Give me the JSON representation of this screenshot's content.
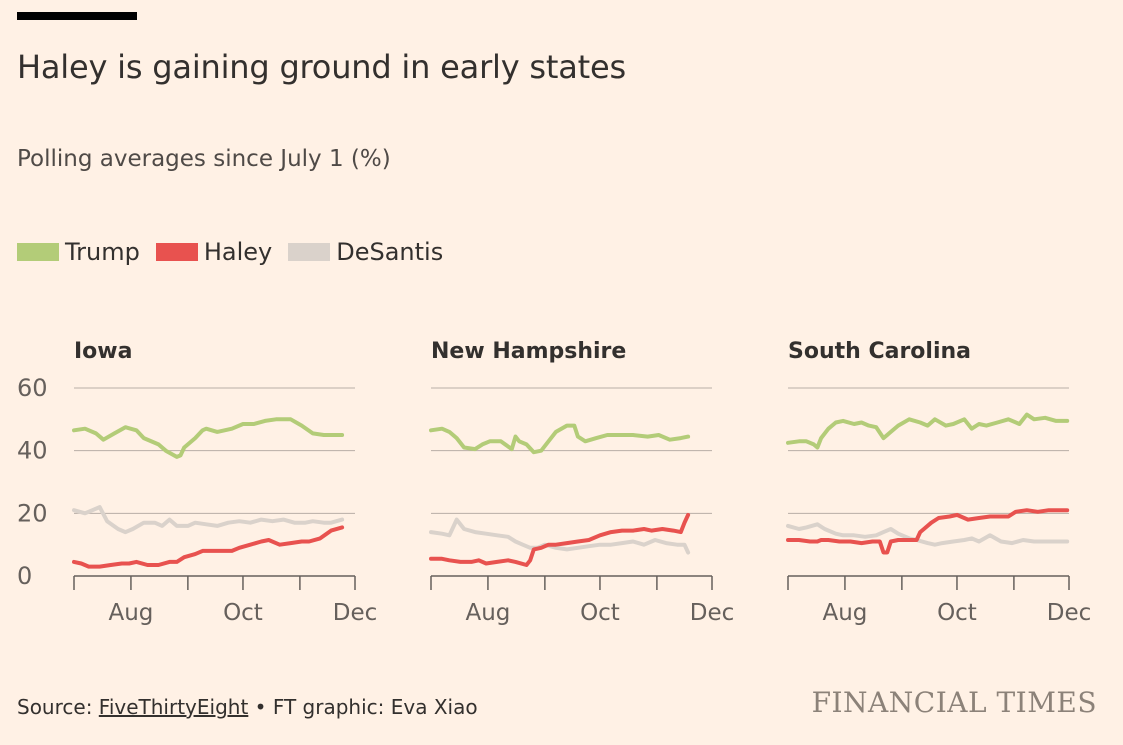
{
  "header": {
    "title": "Haley is gaining ground in early states",
    "subtitle": "Polling averages since July 1 (%)"
  },
  "legend": [
    {
      "label": "Trump",
      "color": "#b3cc78"
    },
    {
      "label": "Haley",
      "color": "#e8524f"
    },
    {
      "label": "DeSantis",
      "color": "#dad2cb"
    }
  ],
  "footer": {
    "source_prefix": "Source: ",
    "source_name": "FiveThirtyEight",
    "credit": " • FT graphic: Eva Xiao",
    "brand": "FINANCIAL TIMES"
  },
  "chart_data": {
    "type": "line",
    "y_ticks": [
      "60",
      "40",
      "20",
      "0"
    ],
    "x_ticks": [
      "Aug",
      "Oct",
      "Dec"
    ],
    "ylim": [
      0,
      60
    ],
    "xlim_days": [
      0,
      153
    ],
    "x_tick_days": [
      31,
      92,
      153
    ],
    "panels": [
      {
        "title": "Iowa",
        "series": [
          {
            "name": "Trump",
            "color": "#b3cc78",
            "x": [
              0,
              6,
              12,
              16,
              22,
              28,
              34,
              38,
              46,
              50,
              56,
              58,
              60,
              66,
              70,
              72,
              78,
              86,
              92,
              98,
              104,
              110,
              118,
              124,
              130,
              136,
              142,
              146
            ],
            "y": [
              46.5,
              47,
              45.5,
              43.5,
              45.5,
              47.5,
              46.5,
              44,
              42,
              40,
              38,
              38.5,
              41,
              44,
              46.5,
              47,
              46,
              47,
              48.5,
              48.5,
              49.5,
              50,
              50,
              48,
              45.5,
              45,
              45,
              45
            ]
          },
          {
            "name": "Haley",
            "color": "#e8524f",
            "x": [
              0,
              4,
              8,
              14,
              20,
              26,
              30,
              34,
              40,
              46,
              52,
              56,
              60,
              66,
              70,
              76,
              80,
              86,
              90,
              96,
              102,
              106,
              112,
              118,
              124,
              128,
              134,
              140,
              146
            ],
            "y": [
              4.5,
              4,
              3,
              3,
              3.5,
              4,
              4,
              4.5,
              3.5,
              3.5,
              4.5,
              4.5,
              6,
              7,
              8,
              8,
              8,
              8,
              9,
              10,
              11,
              11.5,
              10,
              10.5,
              11,
              11,
              12,
              14.5,
              15.5
            ]
          },
          {
            "name": "DeSantis",
            "color": "#dad2cb",
            "x": [
              0,
              6,
              10,
              14,
              18,
              24,
              28,
              32,
              38,
              44,
              48,
              52,
              56,
              62,
              66,
              72,
              78,
              84,
              90,
              96,
              102,
              108,
              114,
              120,
              126,
              130,
              136,
              140,
              146
            ],
            "y": [
              21,
              20,
              21,
              22,
              17.5,
              15,
              14,
              15,
              17,
              17,
              16,
              18,
              16,
              16,
              17,
              16.5,
              16,
              17,
              17.5,
              17,
              18,
              17.5,
              18,
              17,
              17,
              17.5,
              17,
              17,
              18
            ]
          }
        ]
      },
      {
        "title": "New Hampshire",
        "series": [
          {
            "name": "Trump",
            "color": "#b3cc78",
            "x": [
              0,
              6,
              10,
              14,
              18,
              24,
              28,
              32,
              38,
              44,
              46,
              48,
              52,
              56,
              60,
              64,
              68,
              74,
              78,
              80,
              84,
              90,
              96,
              104,
              110,
              118,
              124,
              130,
              136,
              140
            ],
            "y": [
              46.5,
              47,
              46,
              44,
              41,
              40.5,
              42,
              43,
              43,
              40.5,
              44.5,
              43,
              42,
              39.5,
              40,
              43,
              46,
              48,
              48,
              44.5,
              43,
              44,
              45,
              45,
              45,
              44.5,
              45,
              43.5,
              44,
              44.5
            ]
          },
          {
            "name": "Haley",
            "color": "#e8524f",
            "x": [
              0,
              6,
              10,
              16,
              22,
              26,
              30,
              36,
              42,
              46,
              52,
              54,
              56,
              60,
              64,
              68,
              74,
              80,
              86,
              92,
              98,
              104,
              110,
              116,
              120,
              126,
              132,
              136,
              138,
              140
            ],
            "y": [
              5.5,
              5.5,
              5,
              4.5,
              4.5,
              5,
              4,
              4.5,
              5,
              4.5,
              3.5,
              5,
              8.5,
              9,
              10,
              10,
              10.5,
              11,
              11.5,
              13,
              14,
              14.5,
              14.5,
              15,
              14.5,
              15,
              14.5,
              14,
              17,
              19.5
            ]
          },
          {
            "name": "DeSantis",
            "color": "#dad2cb",
            "x": [
              0,
              6,
              10,
              14,
              18,
              24,
              30,
              36,
              42,
              46,
              50,
              54,
              58,
              62,
              68,
              74,
              80,
              86,
              92,
              98,
              104,
              110,
              116,
              122,
              128,
              134,
              138,
              140
            ],
            "y": [
              14,
              13.5,
              13,
              18,
              15,
              14,
              13.5,
              13,
              12.5,
              11,
              10,
              9,
              9,
              10,
              9,
              8.5,
              9,
              9.5,
              10,
              10,
              10.5,
              11,
              10,
              11.5,
              10.5,
              10,
              10,
              7.5
            ]
          }
        ]
      },
      {
        "title": "South Carolina",
        "series": [
          {
            "name": "Trump",
            "color": "#b3cc78",
            "x": [
              0,
              6,
              10,
              14,
              16,
              18,
              22,
              26,
              30,
              36,
              40,
              44,
              48,
              52,
              56,
              60,
              66,
              72,
              76,
              80,
              86,
              90,
              96,
              100,
              104,
              108,
              114,
              120,
              126,
              130,
              134,
              140,
              146,
              152
            ],
            "y": [
              42.5,
              43,
              43,
              42,
              41,
              44,
              47,
              49,
              49.5,
              48.5,
              49,
              48,
              47.5,
              44,
              46,
              48,
              50,
              49,
              48,
              50,
              48,
              48.5,
              50,
              47,
              48.5,
              48,
              49,
              50,
              48.5,
              51.5,
              50,
              50.5,
              49.5,
              49.5
            ]
          },
          {
            "name": "Haley",
            "color": "#e8524f",
            "x": [
              0,
              6,
              12,
              16,
              18,
              22,
              28,
              34,
              40,
              46,
              50,
              52,
              54,
              56,
              60,
              66,
              70,
              72,
              74,
              78,
              82,
              88,
              92,
              98,
              104,
              110,
              116,
              120,
              124,
              130,
              136,
              142,
              148,
              152
            ],
            "y": [
              11.5,
              11.5,
              11,
              11,
              11.5,
              11.5,
              11,
              11,
              10.5,
              11,
              11,
              7.5,
              7.5,
              11,
              11.5,
              11.5,
              11.5,
              14,
              15,
              17,
              18.5,
              19,
              19.5,
              18,
              18.5,
              19,
              19,
              19,
              20.5,
              21,
              20.5,
              21,
              21,
              21
            ]
          },
          {
            "name": "DeSantis",
            "color": "#dad2cb",
            "x": [
              0,
              6,
              10,
              16,
              20,
              26,
              30,
              36,
              42,
              48,
              52,
              56,
              60,
              66,
              70,
              76,
              80,
              84,
              90,
              96,
              100,
              104,
              110,
              116,
              122,
              128,
              134,
              140,
              146,
              152
            ],
            "y": [
              16,
              15,
              15.5,
              16.5,
              15,
              13.5,
              13,
              13,
              12.5,
              13,
              14,
              15,
              13.5,
              12,
              11.5,
              10.5,
              10,
              10.5,
              11,
              11.5,
              12,
              11,
              13,
              11,
              10.5,
              11.5,
              11,
              11,
              11,
              11
            ]
          }
        ]
      }
    ]
  }
}
